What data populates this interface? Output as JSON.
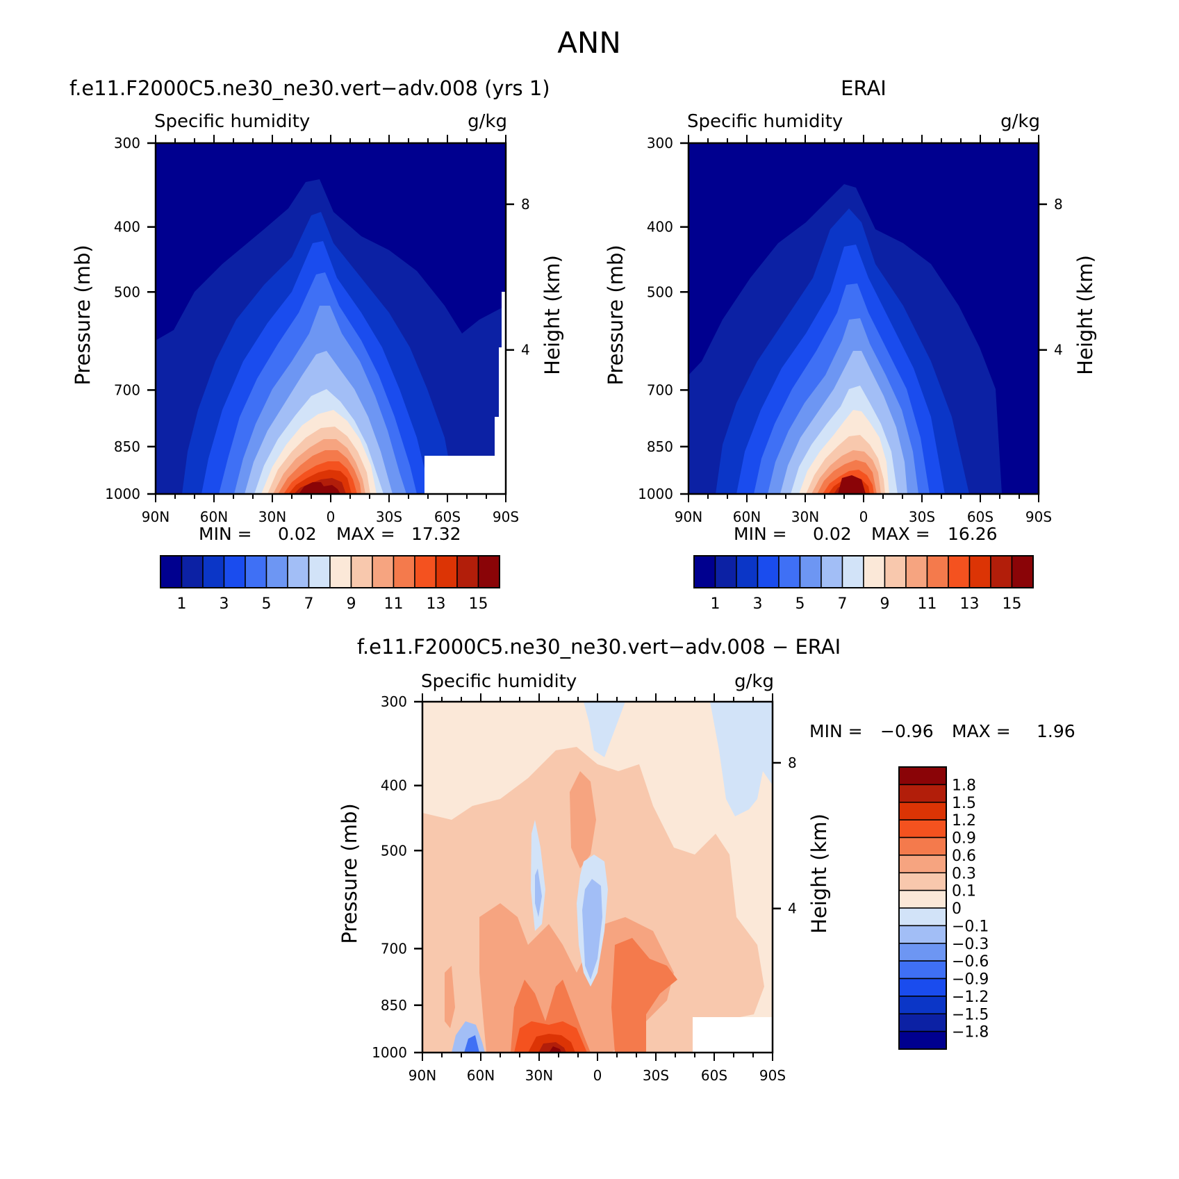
{
  "figure_title": "ANN",
  "panels": [
    {
      "title": "f.e11.F2000C5.ne30_ne30.vert−adv.008 (yrs 1)",
      "left_label": "Specific humidity",
      "right_label": "g/kg",
      "stats": {
        "min_label": "MIN =",
        "min": "0.02",
        "max_label": "MAX =",
        "max": "17.32"
      }
    },
    {
      "title": "ERAI",
      "left_label": "Specific humidity",
      "right_label": "g/kg",
      "stats": {
        "min_label": "MIN =",
        "min": "0.02",
        "max_label": "MAX =",
        "max": "16.26"
      }
    },
    {
      "title": "f.e11.F2000C5.ne30_ne30.vert−adv.008 − ERAI",
      "left_label": "Specific humidity",
      "right_label": "g/kg",
      "stats": {
        "min_label": "MIN =",
        "min": "−0.96",
        "max_label": "MAX =",
        "max": "1.96"
      }
    }
  ],
  "axes": {
    "ylabel": "Pressure (mb)",
    "y2label": "Height (km)",
    "yticks": [
      "300",
      "400",
      "500",
      "700",
      "850",
      "1000"
    ],
    "y2ticks": [
      "8",
      "4"
    ],
    "xticks": [
      "90N",
      "60N",
      "30N",
      "0",
      "30S",
      "60S",
      "90S"
    ]
  },
  "colorbars": {
    "abs": {
      "colors": [
        "#00008f",
        "#0c21a4",
        "#0b36c7",
        "#1a4cee",
        "#3f70f5",
        "#6d96f3",
        "#a2bef6",
        "#d2e3f8",
        "#fbe8d8",
        "#f8c8ad",
        "#f6a480",
        "#f47a4c",
        "#f4521f",
        "#dc3405",
        "#b21e0a",
        "#8a0407"
      ],
      "labels": [
        "1",
        "3",
        "5",
        "7",
        "9",
        "11",
        "13",
        "15"
      ]
    },
    "diff": {
      "colors": [
        "#8a0407",
        "#b21e0a",
        "#dc3405",
        "#f4521f",
        "#f47a4c",
        "#f6a480",
        "#f8c8ad",
        "#fbe8d8",
        "#d2e3f8",
        "#a2bef6",
        "#6d96f3",
        "#3f70f5",
        "#1a4cee",
        "#0b36c7",
        "#0c21a4",
        "#00008f"
      ],
      "labels": [
        "1.8",
        "1.5",
        "1.2",
        "0.9",
        "0.6",
        "0.3",
        "0.1",
        "0",
        "−0.1",
        "−0.3",
        "−0.6",
        "−0.9",
        "−1.2",
        "−1.5",
        "−1.8"
      ]
    }
  },
  "chart_data": [
    {
      "type": "heatmap",
      "title": "f.e11.F2000C5.ne30_ne30.vert−adv.008 (yrs 1)",
      "variable": "Specific humidity",
      "units": "g/kg",
      "xlabel": "",
      "ylabel": "Pressure (mb)",
      "y2label": "Height (km)",
      "x_ticks": [
        "90N",
        "60N",
        "30N",
        "0",
        "30S",
        "60S",
        "90S"
      ],
      "y_ticks": [
        300,
        400,
        500,
        700,
        850,
        1000
      ],
      "y_scale": "log",
      "levels": [
        1,
        2,
        3,
        4,
        5,
        6,
        7,
        8,
        9,
        10,
        11,
        12,
        13,
        14,
        15
      ],
      "min": 0.02,
      "max": 17.32,
      "approx_peak": {
        "lat": 0,
        "pressure": 1000,
        "value": 17.3
      }
    },
    {
      "type": "heatmap",
      "title": "ERAI",
      "variable": "Specific humidity",
      "units": "g/kg",
      "xlabel": "",
      "ylabel": "Pressure (mb)",
      "y2label": "Height (km)",
      "x_ticks": [
        "90N",
        "60N",
        "30N",
        "0",
        "30S",
        "60S",
        "90S"
      ],
      "y_ticks": [
        300,
        400,
        500,
        700,
        850,
        1000
      ],
      "y_scale": "log",
      "levels": [
        1,
        2,
        3,
        4,
        5,
        6,
        7,
        8,
        9,
        10,
        11,
        12,
        13,
        14,
        15
      ],
      "min": 0.02,
      "max": 16.26,
      "approx_peak": {
        "lat": 0,
        "pressure": 1000,
        "value": 16.3
      }
    },
    {
      "type": "heatmap",
      "title": "f.e11.F2000C5.ne30_ne30.vert−adv.008 − ERAI",
      "variable": "Specific humidity",
      "units": "g/kg",
      "xlabel": "",
      "ylabel": "Pressure (mb)",
      "y2label": "Height (km)",
      "x_ticks": [
        "90N",
        "60N",
        "30N",
        "0",
        "30S",
        "60S",
        "90S"
      ],
      "y_ticks": [
        300,
        400,
        500,
        700,
        850,
        1000
      ],
      "y_scale": "log",
      "levels": [
        -1.8,
        -1.5,
        -1.2,
        -0.9,
        -0.6,
        -0.3,
        -0.1,
        0,
        0.1,
        0.3,
        0.6,
        0.9,
        1.2,
        1.5,
        1.8
      ],
      "min": -0.96,
      "max": 1.96
    }
  ]
}
